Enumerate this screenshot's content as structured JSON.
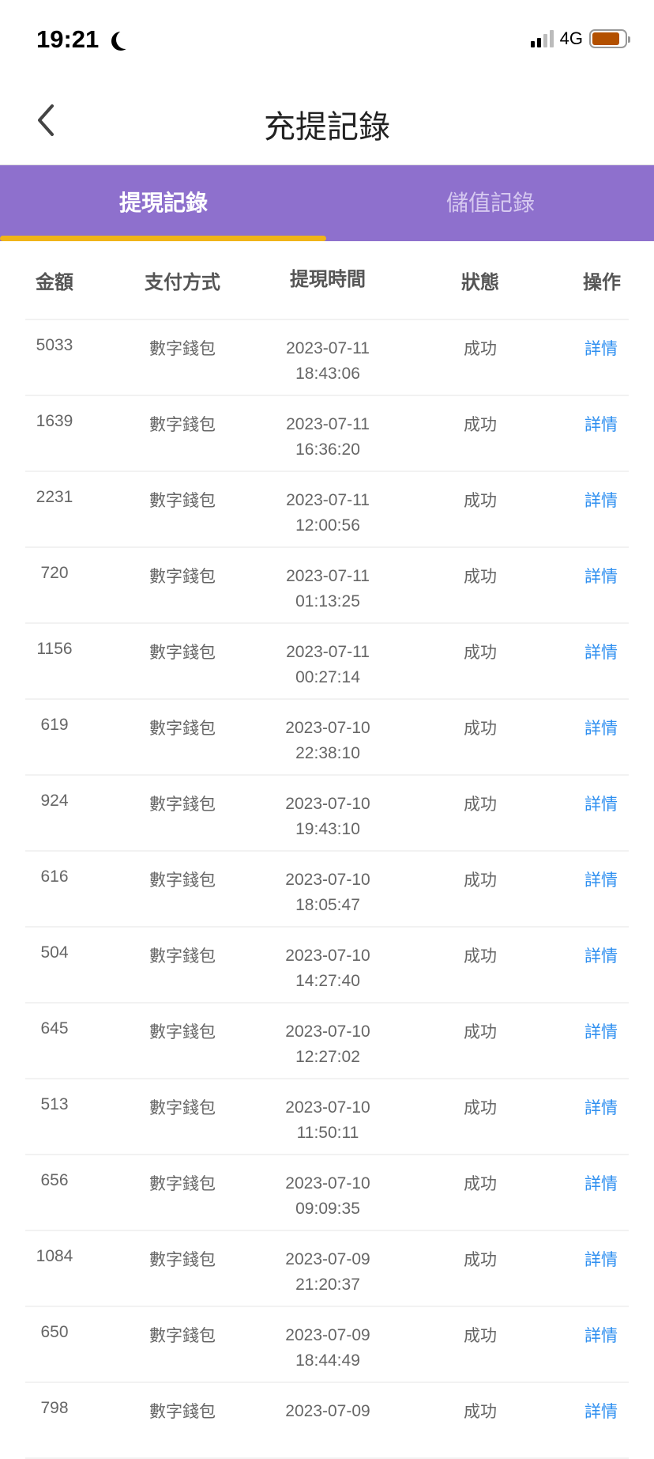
{
  "status_bar": {
    "time": "19:21",
    "network": "4G",
    "colors": {
      "battery": "#b35000"
    }
  },
  "nav": {
    "title": "充提記錄",
    "back_icon": "chevron-left-icon"
  },
  "tabs": [
    {
      "label": "提現記錄",
      "active": true
    },
    {
      "label": "儲值記錄",
      "active": false
    }
  ],
  "colors": {
    "tab_bar": "#8e70cd",
    "indicator": "#f0b418",
    "link": "#2e8ff0"
  },
  "table": {
    "headers": [
      "金額",
      "支付方式",
      "提現時間",
      "狀態",
      "操作"
    ],
    "rows": [
      {
        "amount": "5033",
        "method": "數字錢包",
        "date": "2023-07-11",
        "time": "18:43:06",
        "status": "成功",
        "action": "詳情"
      },
      {
        "amount": "1639",
        "method": "數字錢包",
        "date": "2023-07-11",
        "time": "16:36:20",
        "status": "成功",
        "action": "詳情"
      },
      {
        "amount": "2231",
        "method": "數字錢包",
        "date": "2023-07-11",
        "time": "12:00:56",
        "status": "成功",
        "action": "詳情"
      },
      {
        "amount": "720",
        "method": "數字錢包",
        "date": "2023-07-11",
        "time": "01:13:25",
        "status": "成功",
        "action": "詳情"
      },
      {
        "amount": "1156",
        "method": "數字錢包",
        "date": "2023-07-11",
        "time": "00:27:14",
        "status": "成功",
        "action": "詳情"
      },
      {
        "amount": "619",
        "method": "數字錢包",
        "date": "2023-07-10",
        "time": "22:38:10",
        "status": "成功",
        "action": "詳情"
      },
      {
        "amount": "924",
        "method": "數字錢包",
        "date": "2023-07-10",
        "time": "19:43:10",
        "status": "成功",
        "action": "詳情"
      },
      {
        "amount": "616",
        "method": "數字錢包",
        "date": "2023-07-10",
        "time": "18:05:47",
        "status": "成功",
        "action": "詳情"
      },
      {
        "amount": "504",
        "method": "數字錢包",
        "date": "2023-07-10",
        "time": "14:27:40",
        "status": "成功",
        "action": "詳情"
      },
      {
        "amount": "645",
        "method": "數字錢包",
        "date": "2023-07-10",
        "time": "12:27:02",
        "status": "成功",
        "action": "詳情"
      },
      {
        "amount": "513",
        "method": "數字錢包",
        "date": "2023-07-10",
        "time": "11:50:11",
        "status": "成功",
        "action": "詳情"
      },
      {
        "amount": "656",
        "method": "數字錢包",
        "date": "2023-07-10",
        "time": "09:09:35",
        "status": "成功",
        "action": "詳情"
      },
      {
        "amount": "1084",
        "method": "數字錢包",
        "date": "2023-07-09",
        "time": "21:20:37",
        "status": "成功",
        "action": "詳情"
      },
      {
        "amount": "650",
        "method": "數字錢包",
        "date": "2023-07-09",
        "time": "18:44:49",
        "status": "成功",
        "action": "詳情"
      },
      {
        "amount": "798",
        "method": "數字錢包",
        "date": "2023-07-09",
        "status": "成功",
        "action": "詳情"
      }
    ]
  }
}
